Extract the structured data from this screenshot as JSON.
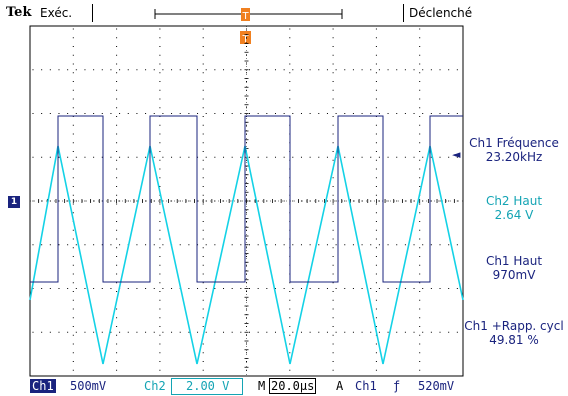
{
  "header": {
    "brand": "Tek",
    "run_state": "Exéc.",
    "trigger_state": "Déclenché",
    "trigger_marker": "T"
  },
  "channel_marker": "1",
  "trigger_point_marker": "◄",
  "measurements": [
    {
      "label": "Ch1 Fréquence",
      "value": "23.20kHz"
    },
    {
      "label": "Ch2 Haut",
      "value": "2.64 V"
    },
    {
      "label": "Ch1 Haut",
      "value": "970mV"
    },
    {
      "label": "Ch1 +Rapp. cycl",
      "value": "49.81 %"
    }
  ],
  "status": {
    "ch1_label": "Ch1",
    "ch1_scale": "500mV",
    "ch2_label": "Ch2",
    "ch2_scale": "2.00 V",
    "timebase_label": "M",
    "timebase": "20.0µs",
    "trigger_mode": "A",
    "trigger_source": "Ch1",
    "trigger_slope": "ƒ",
    "trigger_level": "520mV"
  },
  "colors": {
    "ch1": "#1a237e",
    "ch2": "#14d2e6",
    "graticule": "#000000"
  }
}
